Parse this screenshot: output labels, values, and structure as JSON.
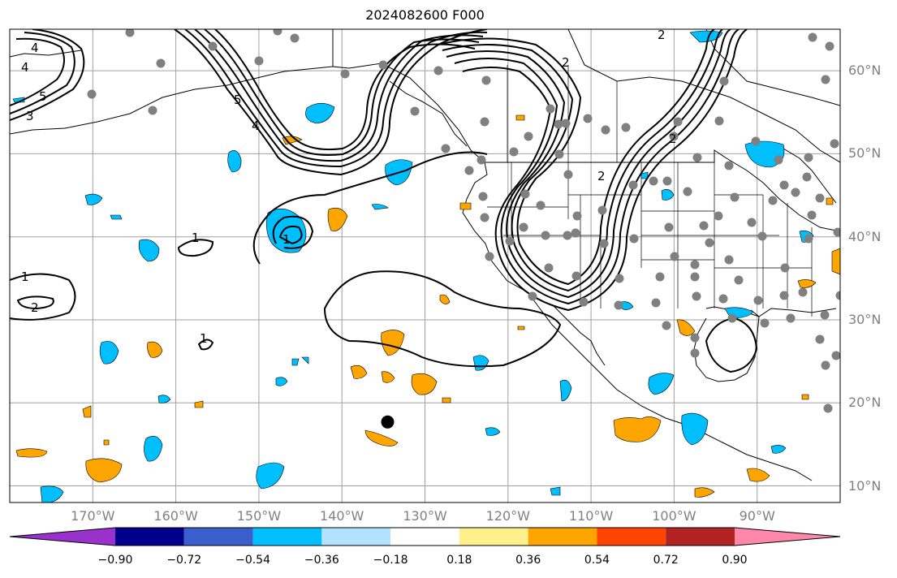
{
  "title": "2024082600 F000",
  "map": {
    "lon_range": [
      -180,
      -80
    ],
    "lat_range": [
      8,
      65
    ],
    "lat_ticks": [
      {
        "value": 60,
        "label": "60°N"
      },
      {
        "value": 50,
        "label": "50°N"
      },
      {
        "value": 40,
        "label": "40°N"
      },
      {
        "value": 30,
        "label": "30°N"
      },
      {
        "value": 20,
        "label": "20°N"
      },
      {
        "value": 10,
        "label": "10°N"
      }
    ],
    "lon_ticks": [
      {
        "value": -170,
        "label": "170°W"
      },
      {
        "value": -160,
        "label": "160°W"
      },
      {
        "value": -150,
        "label": "150°W"
      },
      {
        "value": -140,
        "label": "140°W"
      },
      {
        "value": -130,
        "label": "130°W"
      },
      {
        "value": -120,
        "label": "120°W"
      },
      {
        "value": -110,
        "label": "110°W"
      },
      {
        "value": -100,
        "label": "100°W"
      },
      {
        "value": -90,
        "label": "90°W"
      }
    ],
    "contour_labels": [
      "4",
      "4",
      "5",
      "3",
      "1",
      "1",
      "2",
      "1",
      "1",
      "2",
      "2",
      "2",
      "5",
      "4",
      "2"
    ],
    "storm_marker": {
      "lon": -134.5,
      "lat": 17.7,
      "color": "#000000"
    },
    "colors": {
      "negative": "#00bfff",
      "positive": "#ffa500",
      "station": "#808080",
      "contour": "#000000",
      "grid": "#a0a0a0"
    }
  },
  "colorbar": {
    "colors": [
      "#9932cc",
      "#00008b",
      "#3a5fcd",
      "#00bfff",
      "#b2e2ff",
      "#ffffff",
      "#fff08c",
      "#ffa500",
      "#ff4500",
      "#b22222",
      "#ff88aa"
    ],
    "labels": [
      "−0.90",
      "−0.72",
      "−0.54",
      "−0.36",
      "−0.18",
      "0.18",
      "0.36",
      "0.54",
      "0.72",
      "0.90"
    ]
  }
}
